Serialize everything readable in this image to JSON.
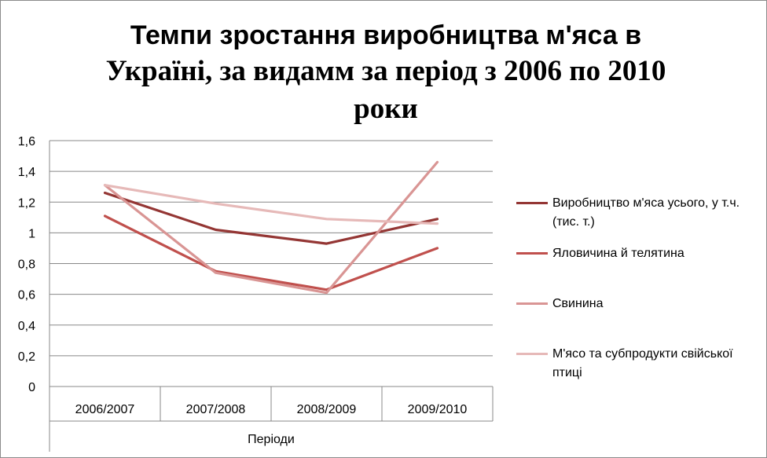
{
  "chart_data": {
    "type": "line",
    "title_line1": "Темпи зростання виробництва м'яса  в",
    "title_line2": "Україні, за видамм за період з 2006 по 2010",
    "title_line3": "роки",
    "xlabel": "Періоди",
    "ylabel": "",
    "categories": [
      "2006/2007",
      "2007/2008",
      "2008/2009",
      "2009/2010"
    ],
    "ylim": [
      0,
      1.6
    ],
    "yticks": [
      "0",
      "0,2",
      "0,4",
      "0,6",
      "0,8",
      "1",
      "1,2",
      "1,4",
      "1,6"
    ],
    "grid": true,
    "legend_position": "right",
    "series": [
      {
        "name": "Виробництво м'яса усього, у т.ч. (тис. т.)",
        "color": "#943634",
        "values": [
          1.26,
          1.02,
          0.93,
          1.09
        ]
      },
      {
        "name": "Яловичина й телятина",
        "color": "#c0504d",
        "values": [
          1.11,
          0.75,
          0.63,
          0.9
        ]
      },
      {
        "name": "Свинина",
        "color": "#d99594",
        "values": [
          1.31,
          0.74,
          0.61,
          1.46
        ]
      },
      {
        "name": "М'ясо та субпродукти свійської птиці",
        "color": "#e6b9b8",
        "values": [
          1.31,
          1.19,
          1.09,
          1.06
        ]
      }
    ]
  }
}
